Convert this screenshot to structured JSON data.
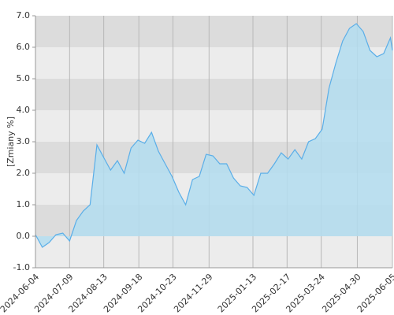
{
  "chart_data": {
    "type": "area",
    "ylabel": "[Zmiany %]",
    "x": [
      "2024-06-04",
      "2024-06-11",
      "2024-06-18",
      "2024-06-25",
      "2024-07-02",
      "2024-07-09",
      "2024-07-16",
      "2024-07-23",
      "2024-07-30",
      "2024-08-06",
      "2024-08-13",
      "2024-08-20",
      "2024-08-27",
      "2024-09-03",
      "2024-09-10",
      "2024-09-17",
      "2024-09-24",
      "2024-10-01",
      "2024-10-08",
      "2024-10-15",
      "2024-10-22",
      "2024-10-29",
      "2024-11-05",
      "2024-11-12",
      "2024-11-19",
      "2024-11-26",
      "2024-12-03",
      "2024-12-10",
      "2024-12-17",
      "2024-12-24",
      "2024-12-31",
      "2025-01-07",
      "2025-01-14",
      "2025-01-21",
      "2025-01-28",
      "2025-02-04",
      "2025-02-11",
      "2025-02-18",
      "2025-02-25",
      "2025-03-04",
      "2025-03-11",
      "2025-03-18",
      "2025-03-25",
      "2025-04-01",
      "2025-04-08",
      "2025-04-15",
      "2025-04-22",
      "2025-04-29",
      "2025-05-06",
      "2025-05-13",
      "2025-05-20",
      "2025-05-27",
      "2025-06-03",
      "2025-06-05"
    ],
    "values": [
      0.05,
      -0.35,
      -0.2,
      0.05,
      0.1,
      -0.15,
      0.5,
      0.8,
      1.0,
      2.9,
      2.5,
      2.1,
      2.4,
      2.0,
      2.8,
      3.05,
      2.95,
      3.3,
      2.7,
      2.3,
      1.9,
      1.4,
      1.0,
      1.8,
      1.9,
      2.6,
      2.55,
      2.3,
      2.3,
      1.85,
      1.6,
      1.55,
      1.3,
      2.0,
      2.0,
      2.3,
      2.65,
      2.45,
      2.75,
      2.45,
      3.0,
      3.1,
      3.4,
      4.7,
      5.5,
      6.2,
      6.6,
      6.75,
      6.5,
      5.9,
      5.7,
      5.8,
      6.3,
      5.9
    ],
    "color": "#5aaee8",
    "fill_color": "#b3ddf0",
    "xlim": [
      "2024-06-04",
      "2025-06-05"
    ],
    "xticks": [
      "2024-06-04",
      "2024-07-09",
      "2024-08-13",
      "2024-09-18",
      "2024-10-23",
      "2024-11-29",
      "2025-01-13",
      "2025-02-17",
      "2025-03-24",
      "2025-04-30",
      "2025-06-05"
    ],
    "ylim": [
      -1,
      7
    ],
    "yticks": [
      {
        "value": -1,
        "label": "-1.0"
      },
      {
        "value": 0,
        "label": "0.0"
      },
      {
        "value": 1,
        "label": "1.0"
      },
      {
        "value": 2,
        "label": "2.0"
      },
      {
        "value": 3,
        "label": "3.0"
      },
      {
        "value": 4,
        "label": "4.0"
      },
      {
        "value": 5,
        "label": "5.0"
      },
      {
        "value": 6,
        "label": "6.0"
      },
      {
        "value": 7,
        "label": "7.0"
      }
    ],
    "grid": true
  }
}
